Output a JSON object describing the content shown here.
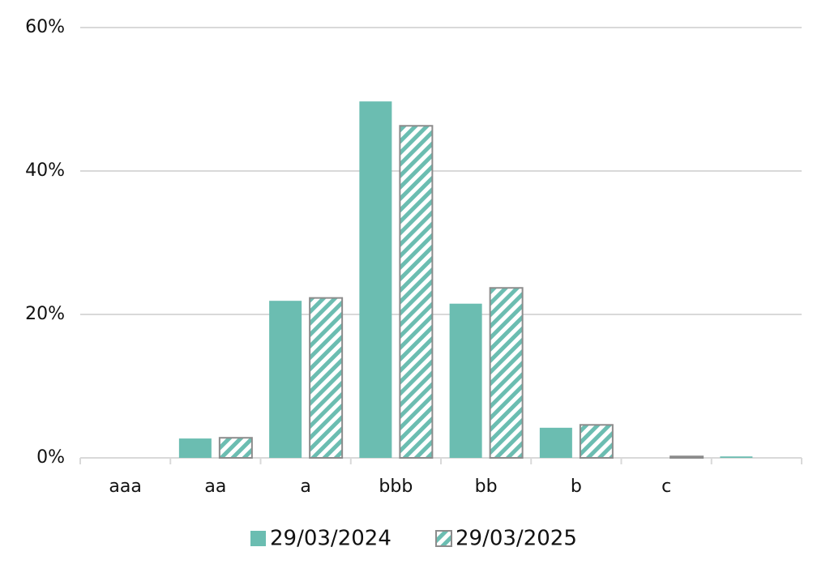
{
  "chart_data": {
    "type": "bar",
    "categories": [
      "aaa",
      "aa",
      "a",
      "bbb",
      "bb",
      "b",
      "c",
      null
    ],
    "series": [
      {
        "name": "29/03/2024",
        "color": "#6bbdb1",
        "values": [
          0,
          2.7,
          21.9,
          49.7,
          21.5,
          4.2,
          0,
          0.2
        ]
      },
      {
        "name": "29/03/2025",
        "color": "#6bbdb1",
        "pattern": "hatch",
        "edgecolor": "#8c8c8c",
        "values": [
          0,
          2.8,
          22.3,
          46.3,
          23.7,
          4.6,
          0.2,
          0
        ]
      }
    ],
    "ylim": [
      0,
      60
    ],
    "yticks": [
      {
        "value": 0,
        "label": "0%"
      },
      {
        "value": 20,
        "label": "20%"
      },
      {
        "value": 40,
        "label": "40%"
      },
      {
        "value": 60,
        "label": "60%"
      }
    ],
    "grid": true,
    "legend": "bottom"
  }
}
